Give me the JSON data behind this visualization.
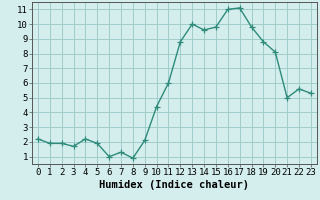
{
  "x": [
    0,
    1,
    2,
    3,
    4,
    5,
    6,
    7,
    8,
    9,
    10,
    11,
    12,
    13,
    14,
    15,
    16,
    17,
    18,
    19,
    20,
    21,
    22,
    23
  ],
  "y": [
    2.2,
    1.9,
    1.9,
    1.7,
    2.2,
    1.9,
    1.0,
    1.3,
    0.9,
    2.1,
    4.4,
    6.0,
    8.8,
    10.0,
    9.6,
    9.8,
    11.0,
    11.1,
    9.8,
    8.8,
    8.1,
    5.0,
    5.6,
    5.3
  ],
  "line_color": "#2e8b7a",
  "marker": "+",
  "marker_size": 4,
  "linewidth": 1.0,
  "xlabel": "Humidex (Indice chaleur)",
  "xlim": [
    -0.5,
    23.5
  ],
  "ylim": [
    0.5,
    11.5
  ],
  "bg_color": "#d4eeee",
  "grid_color": "#a0cccc",
  "xtick_labels": [
    "0",
    "1",
    "2",
    "3",
    "4",
    "5",
    "6",
    "7",
    "8",
    "9",
    "10",
    "11",
    "12",
    "13",
    "14",
    "15",
    "16",
    "17",
    "18",
    "19",
    "20",
    "21",
    "22",
    "23"
  ],
  "ytick_values": [
    1,
    2,
    3,
    4,
    5,
    6,
    7,
    8,
    9,
    10,
    11
  ],
  "xlabel_fontsize": 7.5,
  "tick_fontsize": 6.5
}
